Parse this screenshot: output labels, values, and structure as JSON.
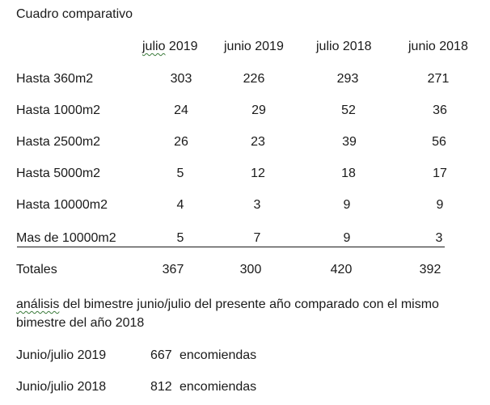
{
  "title": "Cuadro comparativo",
  "table": {
    "headers": [
      "julio 2019",
      "junio 2019",
      "julio 2018",
      "junio 2018"
    ],
    "rows": [
      {
        "label": "Hasta 360m2",
        "values": [
          "303",
          "226",
          "293",
          "271"
        ]
      },
      {
        "label": "Hasta 1000m2",
        "values": [
          "24",
          "29",
          "52",
          "36"
        ]
      },
      {
        "label": "Hasta 2500m2",
        "values": [
          "26",
          "23",
          "39",
          "56"
        ]
      },
      {
        "label": "Hasta 5000m2",
        "values": [
          "5",
          "12",
          "18",
          "17"
        ]
      },
      {
        "label": "Hasta 10000m2",
        "values": [
          "4",
          "3",
          "9",
          "9"
        ]
      },
      {
        "label": "Mas de 10000m2",
        "values": [
          "5",
          "7",
          "9",
          "3"
        ]
      }
    ],
    "totals": {
      "label": "Totales",
      "values": [
        "367",
        "300",
        "420",
        "392"
      ]
    }
  },
  "analysis": {
    "line1_word": "análisis",
    "line1_rest": " del bimestre junio/julio del presente año comparado con el mismo",
    "line2": "bimestre del año 2018"
  },
  "summary": [
    {
      "period": "Junio/julio 2019",
      "count": "667",
      "unit": "encomiendas"
    },
    {
      "period": "Junio/julio 2018",
      "count": "812",
      "unit": "encomiendas"
    }
  ]
}
